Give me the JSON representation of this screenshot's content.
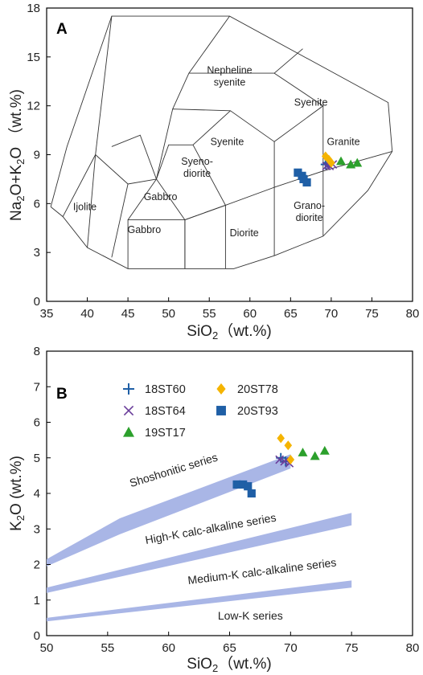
{
  "chart_data": [
    {
      "type": "scatter",
      "panel_label": "A",
      "xlabel": "SiO2（wt.%)",
      "ylabel": "Na2O+K2O （wt.%)",
      "xlim": [
        35,
        80
      ],
      "ylim": [
        0,
        18
      ],
      "xticks": [
        "35",
        "40",
        "45",
        "50",
        "55",
        "60",
        "65",
        "70",
        "75",
        "80"
      ],
      "yticks": [
        "0",
        "3",
        "6",
        "9",
        "12",
        "15",
        "18"
      ],
      "field_labels": [
        {
          "lines": [
            "Nepheline",
            "syenite"
          ],
          "at": [
            57.5,
            13.8
          ]
        },
        {
          "lines": [
            "Syenite"
          ],
          "at": [
            67.5,
            12.2
          ]
        },
        {
          "lines": [
            "Syenite"
          ],
          "at": [
            57.2,
            9.8
          ]
        },
        {
          "lines": [
            "Granite"
          ],
          "at": [
            71.5,
            9.8
          ]
        },
        {
          "lines": [
            "Syeno-",
            "diorite"
          ],
          "at": [
            53.5,
            8.2
          ]
        },
        {
          "lines": [
            "Gabbro"
          ],
          "at": [
            49.0,
            6.4
          ]
        },
        {
          "lines": [
            "Gabbro"
          ],
          "at": [
            47.0,
            4.4
          ]
        },
        {
          "lines": [
            "Ijolite"
          ],
          "at": [
            39.7,
            5.8
          ]
        },
        {
          "lines": [
            "Diorite"
          ],
          "at": [
            59.3,
            4.2
          ]
        },
        {
          "lines": [
            "Grano-",
            "diorite"
          ],
          "at": [
            67.3,
            5.5
          ]
        }
      ],
      "tas_fields": [
        [
          [
            41,
            0
          ],
          [
            41,
            3
          ],
          [
            45,
            3
          ],
          [
            45,
            0
          ]
        ],
        [
          [
            45,
            2
          ],
          [
            45,
            5
          ],
          [
            52,
            5
          ],
          [
            52,
            0
          ]
        ]
      ],
      "series": [
        {
          "name": "18ST60",
          "marker": "plus",
          "color": "#1f5fa6",
          "points": [
            [
              69.3,
              8.4
            ],
            [
              69.6,
              8.5
            ]
          ]
        },
        {
          "name": "18ST64",
          "marker": "x",
          "color": "#6a3d9a",
          "points": [
            [
              69.4,
              8.3
            ],
            [
              69.8,
              8.3
            ],
            [
              70.2,
              8.4
            ]
          ]
        },
        {
          "name": "19ST17",
          "marker": "triangle",
          "color": "#2ca02c",
          "points": [
            [
              71.2,
              8.6
            ],
            [
              72.4,
              8.4
            ],
            [
              73.2,
              8.5
            ]
          ]
        },
        {
          "name": "20ST78",
          "marker": "diamond",
          "color": "#f5b400",
          "points": [
            [
              69.3,
              8.9
            ],
            [
              69.7,
              8.7
            ],
            [
              70.0,
              8.5
            ]
          ]
        },
        {
          "name": "20ST93",
          "marker": "square",
          "color": "#1f5fa6",
          "points": [
            [
              65.9,
              7.9
            ],
            [
              66.4,
              7.7
            ],
            [
              66.6,
              7.5
            ],
            [
              67.0,
              7.3
            ]
          ]
        }
      ]
    },
    {
      "type": "scatter",
      "panel_label": "B",
      "xlabel": "SiO2（wt.%)",
      "ylabel": "K2O (wt.%)",
      "xlim": [
        50,
        80
      ],
      "ylim": [
        0,
        8
      ],
      "xticks": [
        "50",
        "55",
        "60",
        "65",
        "70",
        "75",
        "80"
      ],
      "yticks": [
        "0",
        "1",
        "2",
        "3",
        "4",
        "5",
        "6",
        "7",
        "8"
      ],
      "series_bands": [
        {
          "label": "Shoshonitic series",
          "upper": [
            [
              50,
              2.15
            ],
            [
              56,
              3.3
            ],
            [
              70,
              5.1
            ]
          ],
          "lower": [
            [
              50,
              1.95
            ],
            [
              56,
              2.85
            ],
            [
              70,
              4.7
            ]
          ]
        },
        {
          "label": "High-K calc-alkaline series",
          "upper": [
            [
              50,
              1.35
            ],
            [
              75,
              3.45
            ]
          ],
          "lower": [
            [
              50,
              1.2
            ],
            [
              75,
              3.1
            ]
          ]
        },
        {
          "label": "Medium-K calc-alkaline series",
          "upper": [
            [
              50,
              0.5
            ],
            [
              75,
              1.55
            ]
          ],
          "lower": [
            [
              50,
              0.4
            ],
            [
              75,
              1.35
            ]
          ]
        }
      ],
      "series_labels": [
        {
          "label": "Shoshonitic series",
          "at": [
            60.5,
            4.55
          ],
          "angle": -17
        },
        {
          "label": "High-K calc-alkaline series",
          "at": [
            63.5,
            2.9
          ],
          "angle": -10
        },
        {
          "label": "Medium-K calc-alkaline series",
          "at": [
            67.7,
            1.7
          ],
          "angle": -7
        },
        {
          "label": "Low-K series",
          "at": [
            66.7,
            0.45
          ],
          "angle": 0
        }
      ],
      "series": [
        {
          "name": "18ST60",
          "marker": "plus",
          "color": "#1f5fa6",
          "points": [
            [
              69.2,
              5.0
            ],
            [
              69.6,
              4.9
            ]
          ]
        },
        {
          "name": "18ST64",
          "marker": "x",
          "color": "#6a3d9a",
          "points": [
            [
              69.1,
              4.95
            ],
            [
              69.5,
              4.9
            ],
            [
              69.9,
              4.85
            ]
          ]
        },
        {
          "name": "19ST17",
          "marker": "triangle",
          "color": "#2ca02c",
          "points": [
            [
              71.0,
              5.15
            ],
            [
              72.0,
              5.05
            ],
            [
              72.8,
              5.2
            ]
          ]
        },
        {
          "name": "20ST78",
          "marker": "diamond",
          "color": "#f5b400",
          "points": [
            [
              69.2,
              5.55
            ],
            [
              69.8,
              5.35
            ],
            [
              70.0,
              4.95
            ]
          ]
        },
        {
          "name": "20ST93",
          "marker": "square",
          "color": "#1f5fa6",
          "points": [
            [
              65.6,
              4.25
            ],
            [
              66.1,
              4.25
            ],
            [
              66.5,
              4.2
            ],
            [
              66.8,
              4.0
            ]
          ]
        }
      ],
      "legend": [
        "18ST60",
        "18ST64",
        "19ST17",
        "20ST78",
        "20ST93"
      ],
      "legend_placement": "top-left"
    }
  ]
}
